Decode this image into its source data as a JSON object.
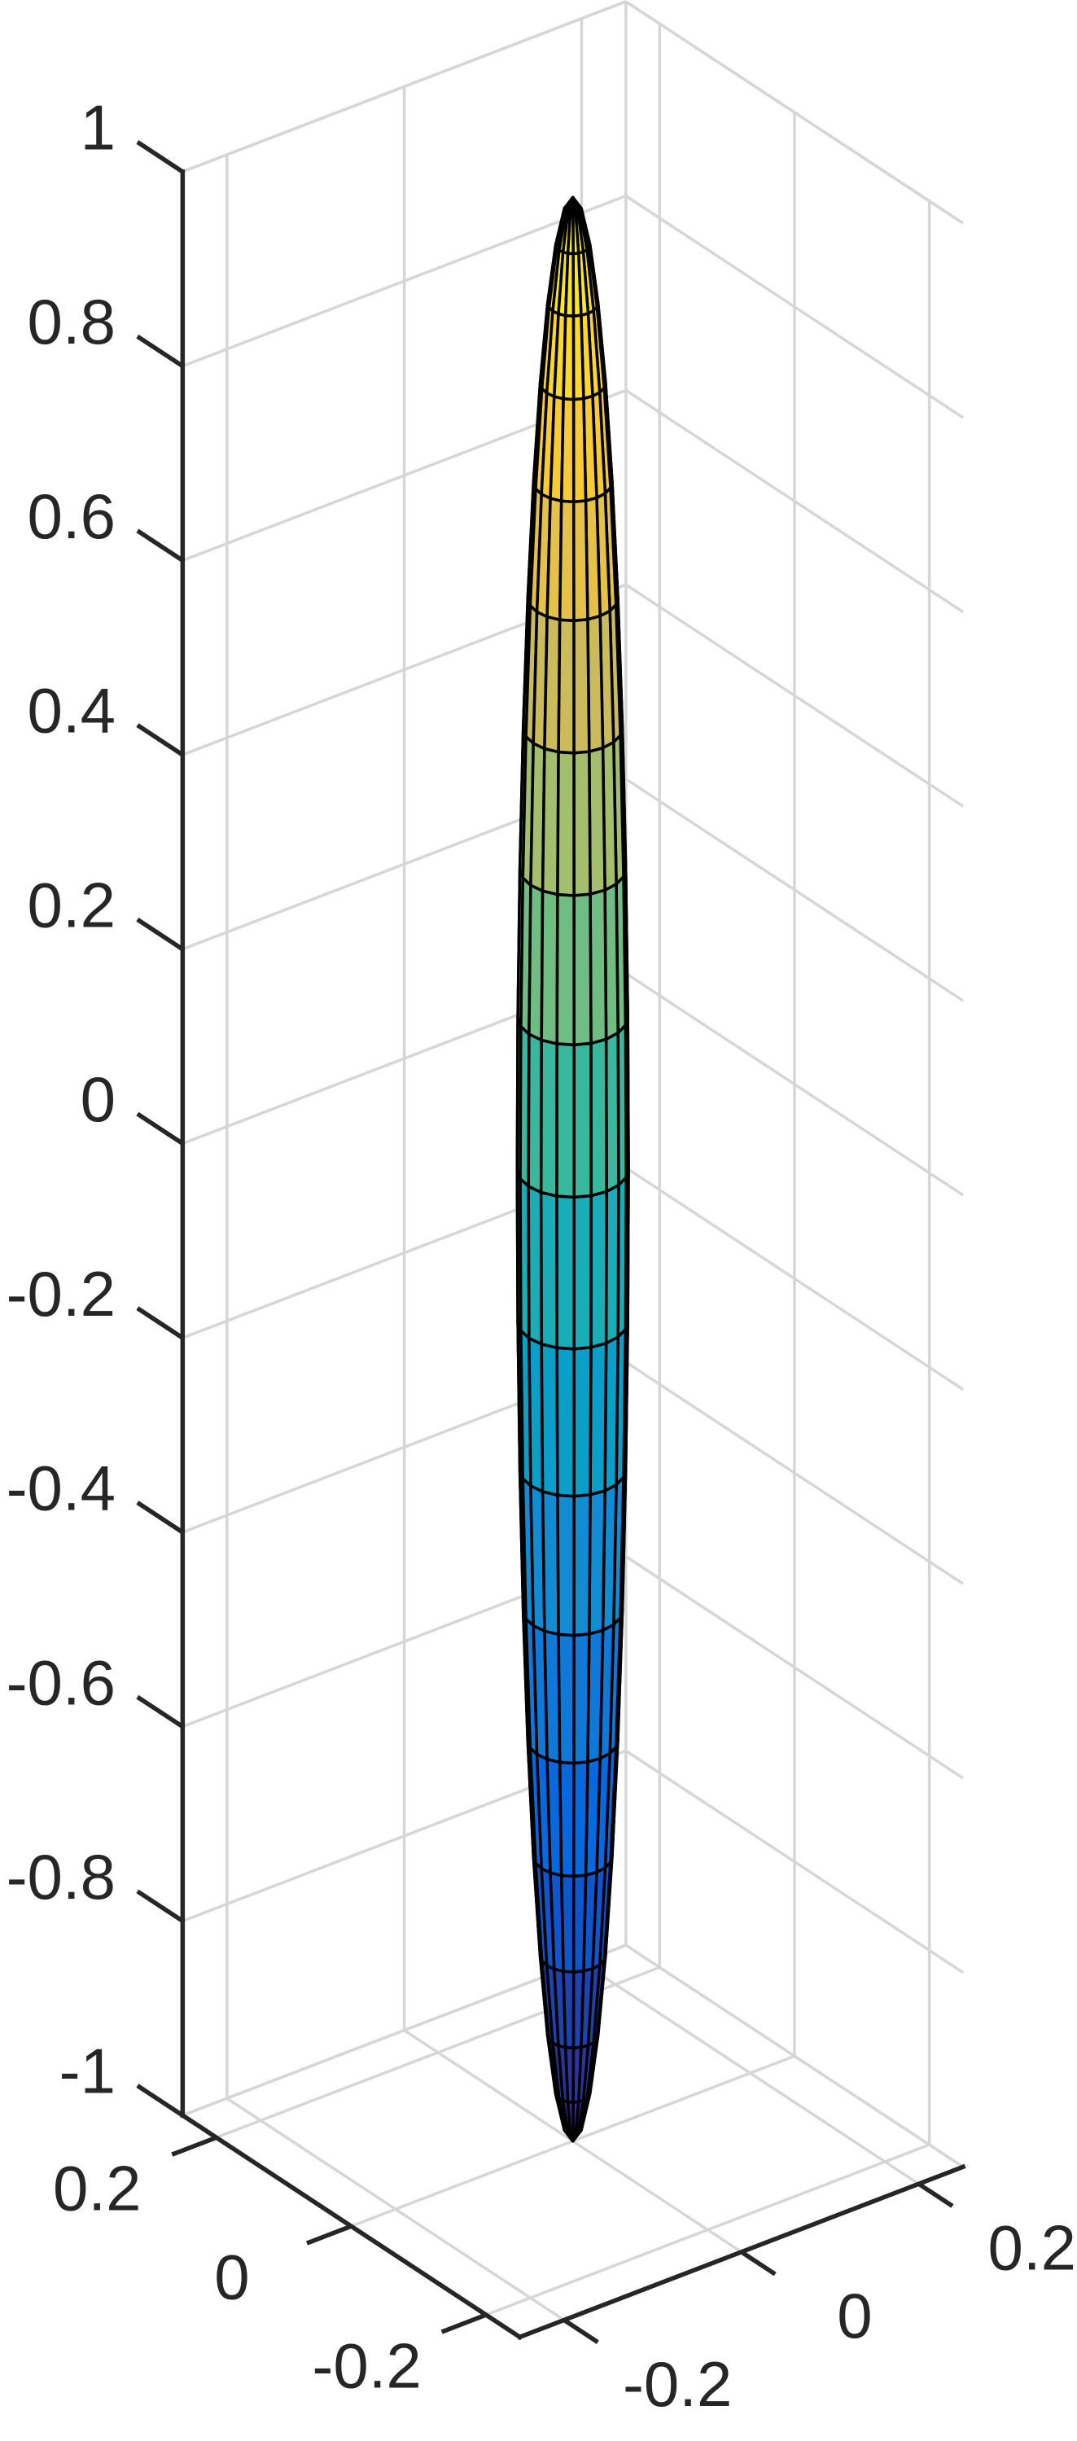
{
  "chart_data": {
    "type": "surface",
    "shape": "ellipsoid",
    "center": [
      0,
      0,
      0
    ],
    "radii": [
      0.05,
      0.05,
      1
    ],
    "mesh": 20,
    "colormap": [
      "#352a87",
      "#0363e1",
      "#1485d4",
      "#06a7c6",
      "#38b99e",
      "#92bf73",
      "#d9ba56",
      "#fcce2e",
      "#f9fb0e"
    ],
    "edge_color": "#000000",
    "xlim": [
      -0.25,
      0.25
    ],
    "xticks": [
      -0.2,
      0,
      0.2
    ],
    "ylim": [
      -0.25,
      0.25
    ],
    "yticks": [
      -0.2,
      0,
      0.2
    ],
    "zlim": [
      -1,
      1
    ],
    "zticks": [
      -1,
      -0.8,
      -0.6,
      -0.4,
      -0.2,
      0,
      0.2,
      0.4,
      0.6,
      0.8,
      1
    ],
    "grid": true
  }
}
